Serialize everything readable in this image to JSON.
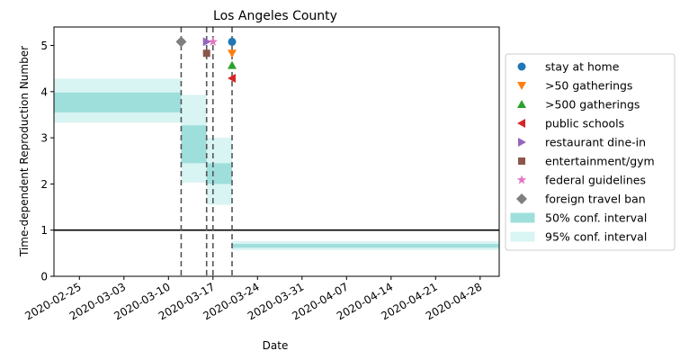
{
  "chart_data": {
    "type": "line",
    "title": "Los Angeles County",
    "xlabel": "Date",
    "ylabel": "Time-dependent Reproduction Number",
    "x_axis": {
      "type": "date",
      "range": [
        "2020-02-21",
        "2020-05-01"
      ],
      "ticks": [
        "2020-02-25",
        "2020-03-03",
        "2020-03-10",
        "2020-03-17",
        "2020-03-24",
        "2020-03-31",
        "2020-04-07",
        "2020-04-14",
        "2020-04-21",
        "2020-04-28"
      ]
    },
    "y_axis": {
      "range": [
        0,
        5.4
      ],
      "ticks": [
        0,
        1,
        2,
        3,
        4,
        5
      ]
    },
    "grid": false,
    "legend_position": "right",
    "reference_line": {
      "y": 1,
      "color": "#000000"
    },
    "intervention_dates": [
      "2020-03-12",
      "2020-03-16",
      "2020-03-17",
      "2020-03-20"
    ],
    "interventions": [
      {
        "name": "stay at home",
        "date": "2020-03-20",
        "y": 5.08,
        "marker": "circle",
        "color": "#1f77b4"
      },
      {
        "name": ">50 gatherings",
        "date": "2020-03-20",
        "y": 4.83,
        "marker": "triangle-down",
        "color": "#ff7f0e"
      },
      {
        "name": ">500 gatherings",
        "date": "2020-03-20",
        "y": 4.57,
        "marker": "triangle-up",
        "color": "#2ca02c"
      },
      {
        "name": "public schools",
        "date": "2020-03-20",
        "y": 4.29,
        "marker": "triangle-left",
        "color": "#d62728"
      },
      {
        "name": "restaurant dine-in",
        "date": "2020-03-16",
        "y": 5.08,
        "marker": "triangle-right",
        "color": "#9467bd"
      },
      {
        "name": "entertainment/gym",
        "date": "2020-03-16",
        "y": 4.83,
        "marker": "square",
        "color": "#8c564b"
      },
      {
        "name": "federal guidelines",
        "date": "2020-03-17",
        "y": 5.08,
        "marker": "star",
        "color": "#e377c2"
      },
      {
        "name": "foreign travel ban",
        "date": "2020-03-12",
        "y": 5.08,
        "marker": "diamond",
        "color": "#7f7f7f"
      }
    ],
    "intervals": [
      {
        "from": "2020-02-21",
        "to": "2020-03-12",
        "ci50": [
          3.55,
          3.98
        ],
        "ci95": [
          3.33,
          4.28
        ]
      },
      {
        "from": "2020-03-12",
        "to": "2020-03-16",
        "ci50": [
          2.45,
          3.27
        ],
        "ci95": [
          2.03,
          3.93
        ]
      },
      {
        "from": "2020-03-16",
        "to": "2020-03-17",
        "ci50": [
          2.0,
          2.45
        ],
        "ci95": [
          1.55,
          3.0
        ]
      },
      {
        "from": "2020-03-17",
        "to": "2020-03-20",
        "ci50": [
          2.0,
          2.45
        ],
        "ci95": [
          1.55,
          3.0
        ]
      },
      {
        "from": "2020-03-20",
        "to": "2020-05-01",
        "ci50": [
          0.62,
          0.7
        ],
        "ci95": [
          0.57,
          0.76
        ]
      }
    ],
    "interval_legend": [
      {
        "name": "50% conf. interval",
        "color": "#9edfdc"
      },
      {
        "name": "95% conf. interval",
        "color": "#d8f4f3"
      }
    ]
  }
}
